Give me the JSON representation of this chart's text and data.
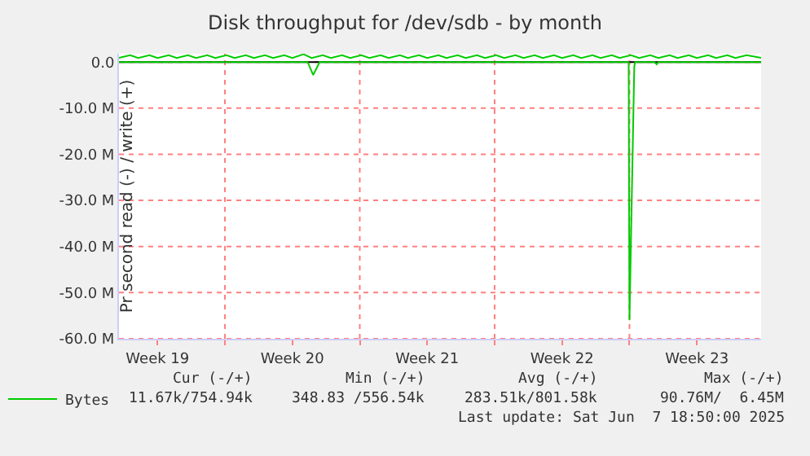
{
  "chart_data": {
    "type": "line",
    "title": "Disk throughput for /dev/sdb - by month",
    "ylabel": "Pr second read (-) / write (+)",
    "xlim": [
      "2025-05-06T12:00",
      "2025-06-08T20:00"
    ],
    "xticks": [
      {
        "value": "2025-05-08T12:00",
        "label": "Week 19"
      },
      {
        "value": "2025-05-12",
        "label": null
      },
      {
        "value": "2025-05-15T12:00",
        "label": "Week 20"
      },
      {
        "value": "2025-05-19",
        "label": null
      },
      {
        "value": "2025-05-22T12:00",
        "label": "Week 21"
      },
      {
        "value": "2025-05-26",
        "label": null
      },
      {
        "value": "2025-05-29T12:00",
        "label": "Week 22"
      },
      {
        "value": "2025-06-02",
        "label": null
      },
      {
        "value": "2025-06-05T12:00",
        "label": "Week 23"
      }
    ],
    "ylim": [
      -60,
      1.8
    ],
    "yticks": [
      {
        "value": 0,
        "label": "0.0"
      },
      {
        "value": -10,
        "label": "-10.0 M"
      },
      {
        "value": -20,
        "label": "-20.0 M"
      },
      {
        "value": -30,
        "label": "-30.0 M"
      },
      {
        "value": -40,
        "label": "-40.0 M"
      },
      {
        "value": -50,
        "label": "-50.0 M"
      },
      {
        "value": -60,
        "label": "-60.0 M"
      }
    ],
    "grid": true,
    "legend": "bottom left",
    "line_style": "solid",
    "ref_lines": [
      {
        "axis": "y",
        "value": 0,
        "color": "#000000"
      }
    ],
    "series": [
      {
        "name": "Bytes",
        "color": "#00cc00",
        "x": [
          "2025-05-06T12:00",
          "2025-05-07T02:00",
          "2025-05-07T12:00",
          "2025-05-08T02:00",
          "2025-05-08T12:00",
          "2025-05-09T02:00",
          "2025-05-09T12:00",
          "2025-05-10T02:00",
          "2025-05-10T12:00",
          "2025-05-11T02:00",
          "2025-05-11T12:00",
          "2025-05-12T02:00",
          "2025-05-12T12:00",
          "2025-05-13T02:00",
          "2025-05-13T12:00",
          "2025-05-14T02:00",
          "2025-05-14T12:00",
          "2025-05-15T02:00",
          "2025-05-15T12:00",
          "2025-05-16T02:00",
          "2025-05-16T12:00",
          "2025-05-17T02:00",
          "2025-05-17T12:00",
          "2025-05-18T02:00",
          "2025-05-18T12:00",
          "2025-05-19T02:00",
          "2025-05-19T12:00",
          "2025-05-20T02:00",
          "2025-05-20T12:00",
          "2025-05-21T02:00",
          "2025-05-21T12:00",
          "2025-05-22T02:00",
          "2025-05-22T12:00",
          "2025-05-23T02:00",
          "2025-05-23T12:00",
          "2025-05-24T02:00",
          "2025-05-24T12:00",
          "2025-05-25T02:00",
          "2025-05-25T12:00",
          "2025-05-26T02:00",
          "2025-05-26T12:00",
          "2025-05-27T02:00",
          "2025-05-27T12:00",
          "2025-05-28T02:00",
          "2025-05-28T12:00",
          "2025-05-29T02:00",
          "2025-05-29T12:00",
          "2025-05-30T02:00",
          "2025-05-30T12:00",
          "2025-05-31T02:00",
          "2025-05-31T12:00",
          "2025-06-01T02:00",
          "2025-06-01T12:00",
          "2025-06-02T02:00",
          "2025-06-02T12:00",
          "2025-06-03T02:00",
          "2025-06-03T12:00",
          "2025-06-04T02:00",
          "2025-06-04T12:00",
          "2025-06-05T02:00",
          "2025-06-05T12:00",
          "2025-06-06T02:00",
          "2025-06-06T12:00",
          "2025-06-07T02:00",
          "2025-06-07T12:00",
          "2025-06-08T02:00",
          "2025-06-08T20:00"
        ],
        "values": [
          0.9,
          1.5,
          0.9,
          1.5,
          0.9,
          1.5,
          0.9,
          1.5,
          0.9,
          1.5,
          0.9,
          1.5,
          0.9,
          1.5,
          0.9,
          1.5,
          0.9,
          1.5,
          0.9,
          1.7,
          0.9,
          1.5,
          0.9,
          1.5,
          0.9,
          1.5,
          0.9,
          1.5,
          0.9,
          1.5,
          0.9,
          1.5,
          0.9,
          1.5,
          0.9,
          1.5,
          0.9,
          1.5,
          0.9,
          1.5,
          0.9,
          1.5,
          0.9,
          1.5,
          0.9,
          1.5,
          0.9,
          1.5,
          0.9,
          1.5,
          0.9,
          1.5,
          0.9,
          1.5,
          0.9,
          1.5,
          0.9,
          1.5,
          0.9,
          1.5,
          0.9,
          1.5,
          0.9,
          1.5,
          0.9,
          1.5,
          0.9
        ]
      },
      {
        "color": "#00cc00",
        "x": [
          "2025-05-06T12:00",
          "2025-05-16T07:00",
          "2025-05-16T14:00",
          "2025-05-16T22:00",
          "2025-06-01T23:00",
          "2025-06-02T00:00",
          "2025-06-02T06:00",
          "2025-06-02T07:00",
          "2025-06-03T07:00",
          "2025-06-03T10:00",
          "2025-06-03T12:00",
          "2025-06-08T20:00"
        ],
        "values": [
          0,
          0,
          -2.8,
          0,
          0,
          -56,
          -1,
          0,
          0,
          -0.5,
          0,
          0
        ]
      }
    ],
    "annotations": [
      "Cur (-/+)",
      "Min (-/+)",
      "Avg (-/+)",
      "Max (-/+)",
      "11.67k/754.94k",
      "348.83 /556.54k",
      "283.51k/801.58k",
      "90.76M/  6.45M",
      "Last update: Sat Jun  7 18:50:00 2025"
    ]
  }
}
